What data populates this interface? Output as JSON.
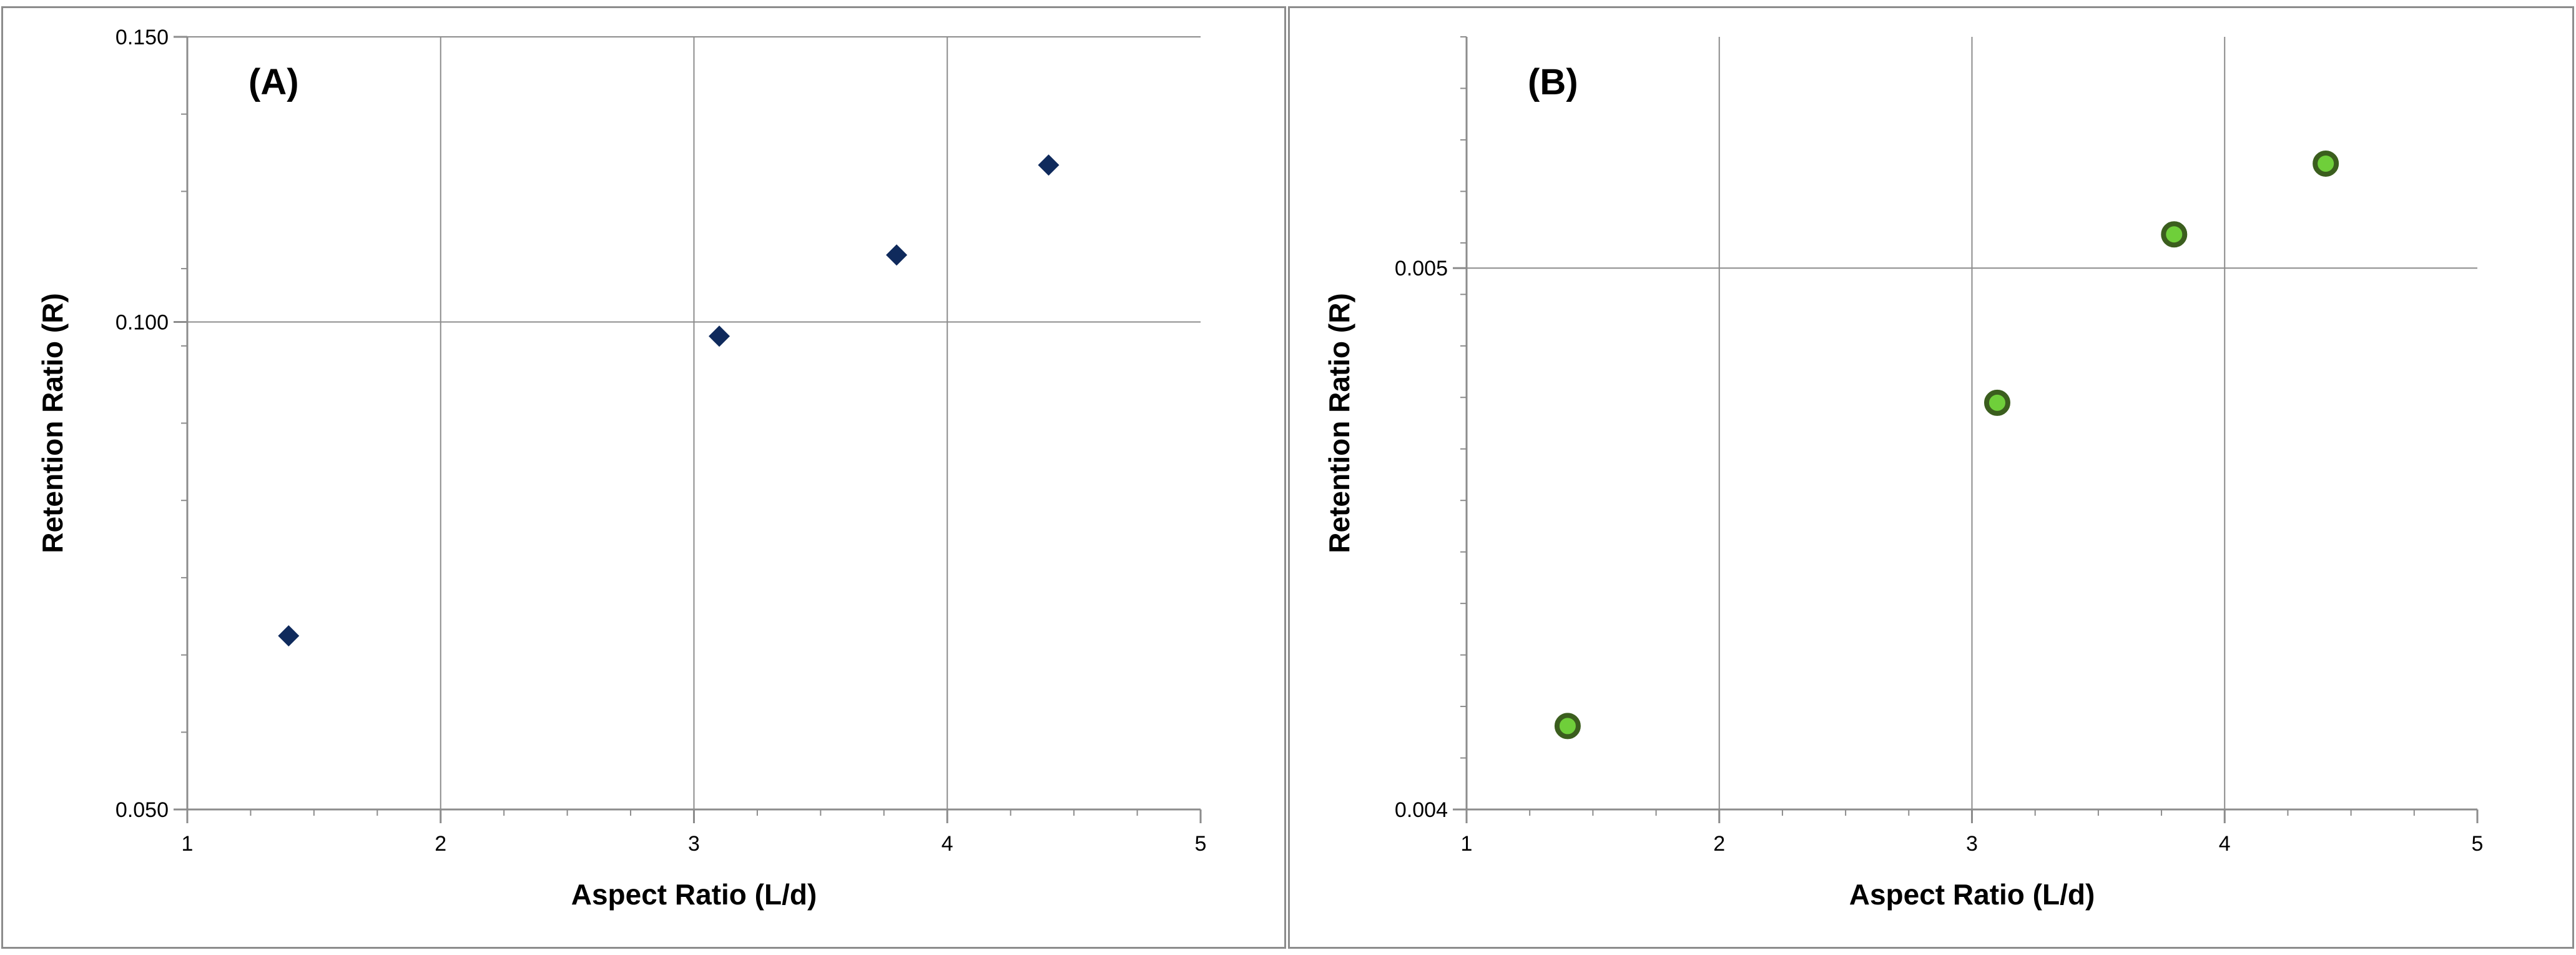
{
  "chart_data": [
    {
      "type": "scatter",
      "panel_label": "(A)",
      "xlabel": "Aspect Ratio (L/d)",
      "ylabel": "Retention Ratio (R)",
      "xlim": [
        1,
        5
      ],
      "ylim": [
        0.05,
        0.15
      ],
      "x_ticks": [
        1,
        2,
        3,
        4,
        5
      ],
      "x_tick_labels": [
        "1",
        "2",
        "3",
        "4",
        "5"
      ],
      "y_ticks": [
        0.05,
        0.1,
        0.15
      ],
      "y_tick_labels": [
        "0.050",
        "0.100",
        "0.150"
      ],
      "y_minor_ticks": 10,
      "grid": true,
      "y_scale": "log",
      "marker": "diamond",
      "marker_color": "#0f2a5c",
      "series": [
        {
          "x": [
            1.4,
            3.1,
            3.8,
            4.4
          ],
          "y": [
            0.064,
            0.098,
            0.11,
            0.125
          ]
        }
      ]
    },
    {
      "type": "scatter",
      "panel_label": "(B)",
      "xlabel": "Aspect Ratio (L/d)",
      "ylabel": "Retention Ratio (R)",
      "xlim": [
        1,
        5
      ],
      "ylim": [
        0.004,
        0.0055
      ],
      "x_ticks": [
        1,
        2,
        3,
        4,
        5
      ],
      "x_tick_labels": [
        "1",
        "2",
        "3",
        "4",
        "5"
      ],
      "y_ticks": [
        0.004,
        0.005
      ],
      "y_tick_labels": [
        "0.004",
        "0.005"
      ],
      "y_minor_ticks": 15,
      "grid": true,
      "y_scale": "log",
      "marker": "circle",
      "marker_color": "#6fcf3a",
      "marker_edge_color": "#3b5e1e",
      "series": [
        {
          "x": [
            1.4,
            3.1,
            3.8,
            4.4
          ],
          "y": [
            0.00414,
            0.00473,
            0.00507,
            0.00522
          ]
        }
      ]
    }
  ]
}
